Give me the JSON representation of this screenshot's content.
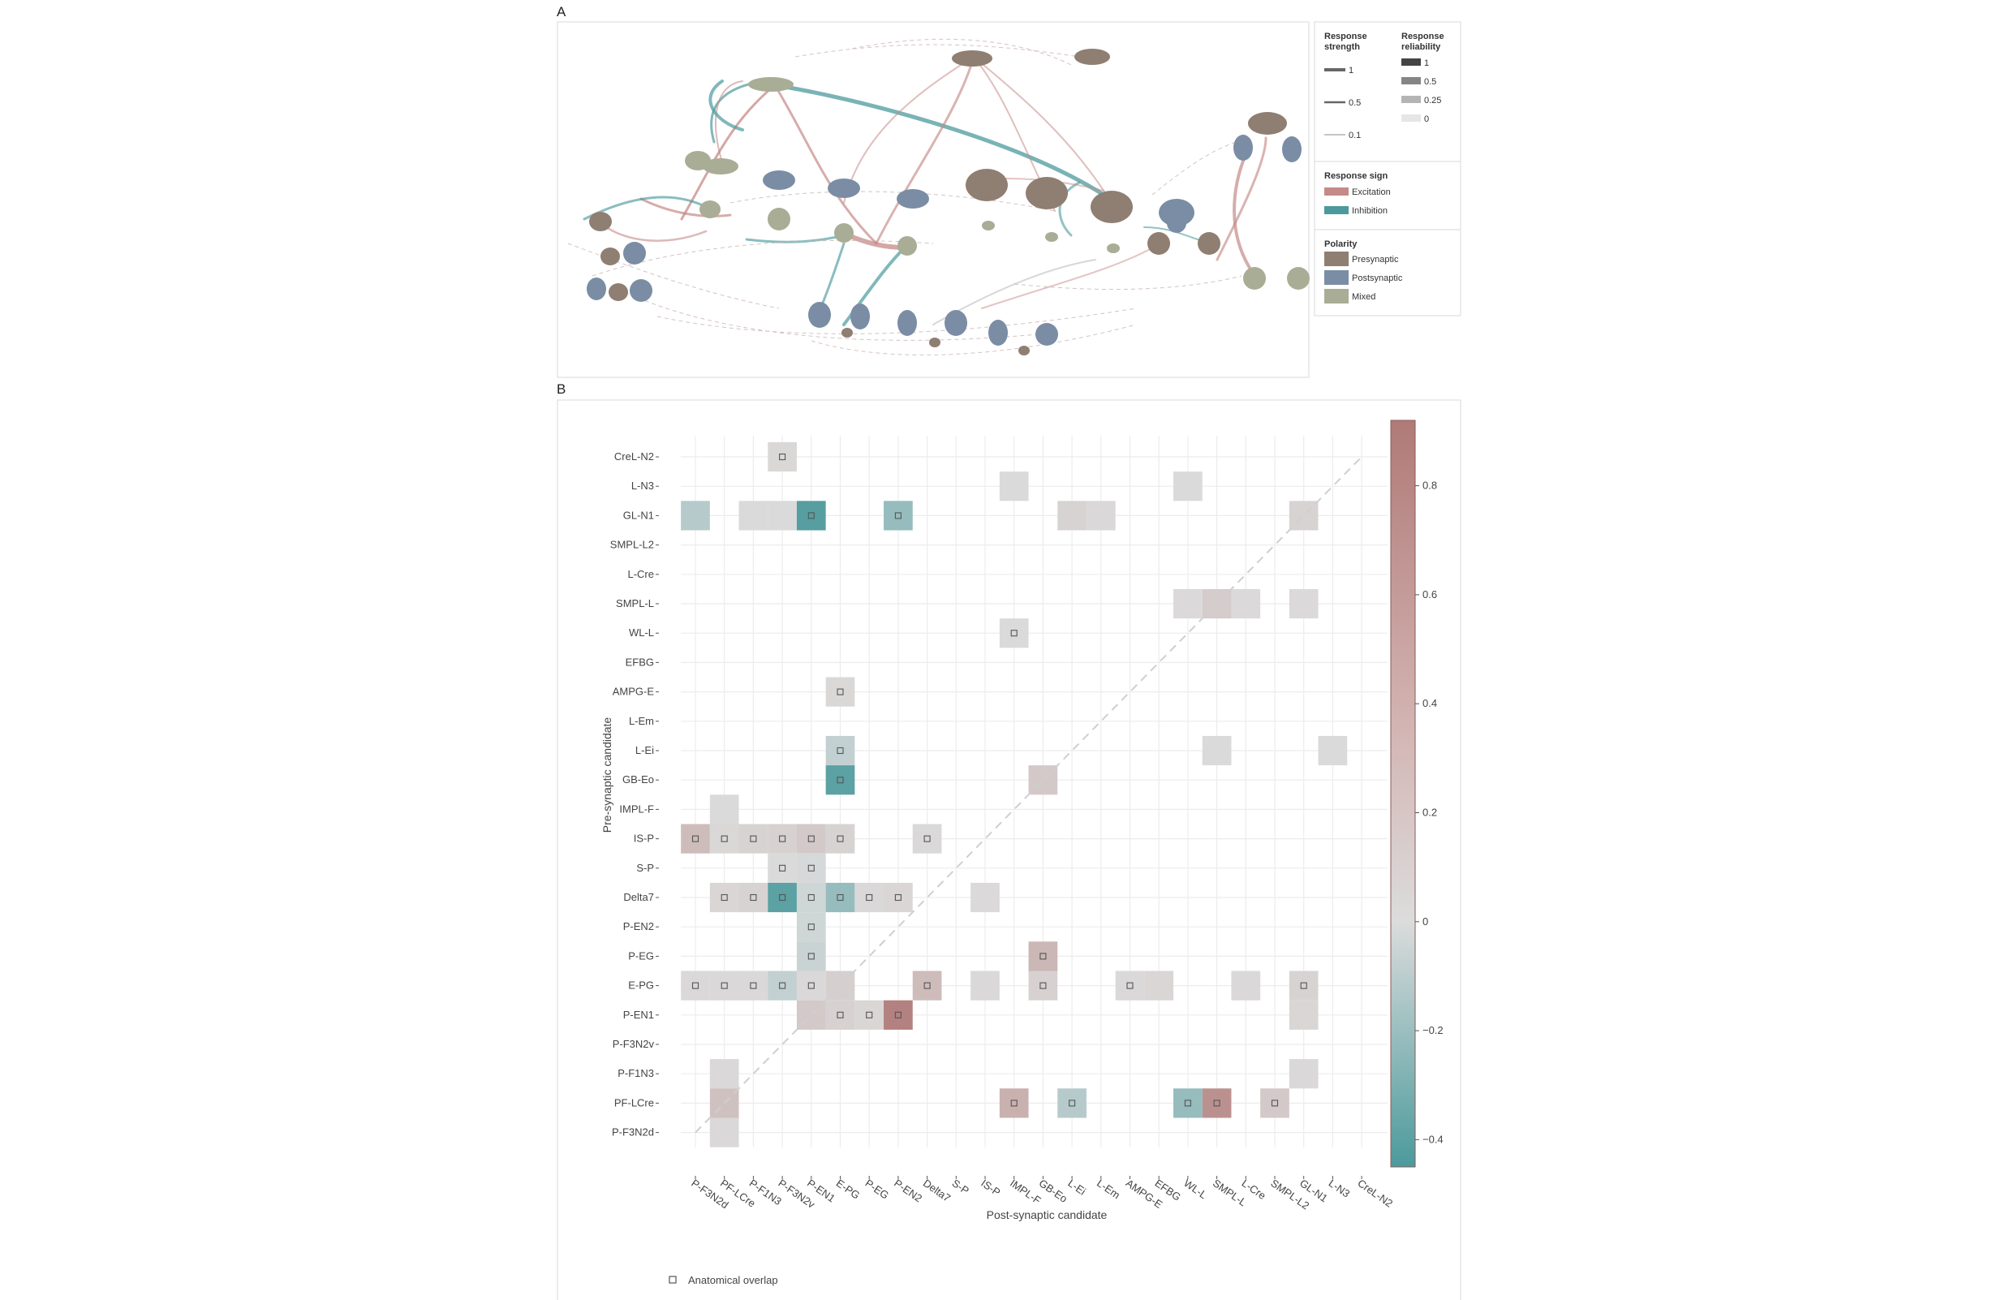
{
  "panels": {
    "a_label": "A",
    "b_label": "B"
  },
  "panel_a_legend": {
    "strength": {
      "title_1": "Response",
      "title_2": "strength",
      "levels": [
        "1",
        "0.5",
        "0.1"
      ]
    },
    "reliability": {
      "title_1": "Response",
      "title_2": "reliability",
      "levels": [
        "1",
        "0.5",
        "0.25",
        "0"
      ]
    },
    "sign": {
      "title": "Response sign",
      "items": [
        {
          "label": "Excitation",
          "color": "#c58a87"
        },
        {
          "label": "Inhibition",
          "color": "#4c9a9c"
        }
      ]
    },
    "polarity": {
      "title": "Polarity",
      "items": [
        {
          "label": "Presynaptic",
          "color": "#8f7e72"
        },
        {
          "label": "Postsynaptic",
          "color": "#7a8da5"
        },
        {
          "label": "Mixed",
          "color": "#a9ad96"
        }
      ]
    }
  },
  "chart_data": {
    "type": "heatmap",
    "xlabel": "Post-synaptic candidate",
    "ylabel": "Pre-synaptic candidate",
    "x_categories": [
      "P-F3N2d",
      "PF-LCre",
      "P-F1N3",
      "P-F3N2v",
      "P-EN1",
      "E-PG",
      "P-EG",
      "P-EN2",
      "Delta7",
      "S-P",
      "IS-P",
      "IMPL-F",
      "GB-Eo",
      "L-Ei",
      "L-Em",
      "AMPG-E",
      "EFBG",
      "WL-L",
      "SMPL-L",
      "L-Cre",
      "SMPL-L2",
      "GL-N1",
      "L-N3",
      "CreL-N2"
    ],
    "y_categories": [
      "CreL-N2",
      "L-N3",
      "GL-N1",
      "SMPL-L2",
      "L-Cre",
      "SMPL-L",
      "WL-L",
      "EFBG",
      "AMPG-E",
      "L-Em",
      "L-Ei",
      "GB-Eo",
      "IMPL-F",
      "IS-P",
      "S-P",
      "Delta7",
      "P-EN2",
      "P-EG",
      "E-PG",
      "P-EN1",
      "P-F3N2v",
      "P-F1N3",
      "PF-LCre",
      "P-F3N2d"
    ],
    "colorbar": {
      "min": -0.45,
      "max": 0.92,
      "ticks": [
        0.8,
        0.6,
        0.4,
        0.2,
        0,
        -0.2,
        -0.4
      ],
      "tick_labels": [
        "0.8",
        "0.6",
        "0.4",
        "0.2",
        "0",
        "−0.2",
        "−0.4"
      ],
      "low_color": "#4c9a9c",
      "mid_color": "#dcdcdc",
      "high_color": "#b07a77"
    },
    "diagonal": "dashed",
    "overlap_legend": "Anatomical overlap",
    "cells": [
      {
        "pre": "CreL-N2",
        "post": "P-F3N2v",
        "value": 0.05,
        "overlap": true
      },
      {
        "pre": "L-N3",
        "post": "IMPL-F",
        "value": 0.02,
        "overlap": false
      },
      {
        "pre": "L-N3",
        "post": "WL-L",
        "value": 0.02,
        "overlap": false
      },
      {
        "pre": "GL-N1",
        "post": "P-F3N2d",
        "value": -0.12,
        "overlap": false
      },
      {
        "pre": "GL-N1",
        "post": "P-F1N3",
        "value": 0.02,
        "overlap": false
      },
      {
        "pre": "GL-N1",
        "post": "P-F3N2v",
        "value": 0.02,
        "overlap": false
      },
      {
        "pre": "GL-N1",
        "post": "P-EN1",
        "value": -0.42,
        "overlap": true
      },
      {
        "pre": "GL-N1",
        "post": "P-EN2",
        "value": -0.22,
        "overlap": true
      },
      {
        "pre": "GL-N1",
        "post": "L-Ei",
        "value": 0.08,
        "overlap": false
      },
      {
        "pre": "GL-N1",
        "post": "L-Em",
        "value": 0.04,
        "overlap": false
      },
      {
        "pre": "GL-N1",
        "post": "GL-N1",
        "value": 0.08,
        "overlap": false
      },
      {
        "pre": "SMPL-L",
        "post": "WL-L",
        "value": 0.03,
        "overlap": false
      },
      {
        "pre": "SMPL-L",
        "post": "SMPL-L",
        "value": 0.15,
        "overlap": false
      },
      {
        "pre": "SMPL-L",
        "post": "L-Cre",
        "value": 0.03,
        "overlap": false
      },
      {
        "pre": "SMPL-L",
        "post": "GL-N1",
        "value": 0.03,
        "overlap": false
      },
      {
        "pre": "WL-L",
        "post": "IMPL-F",
        "value": 0.02,
        "overlap": true
      },
      {
        "pre": "AMPG-E",
        "post": "E-PG",
        "value": 0.05,
        "overlap": true
      },
      {
        "pre": "L-Ei",
        "post": "E-PG",
        "value": -0.08,
        "overlap": true
      },
      {
        "pre": "L-Ei",
        "post": "SMPL-L",
        "value": 0.02,
        "overlap": false
      },
      {
        "pre": "L-Ei",
        "post": "L-N3",
        "value": 0.02,
        "overlap": false
      },
      {
        "pre": "GB-Eo",
        "post": "E-PG",
        "value": -0.4,
        "overlap": true
      },
      {
        "pre": "GB-Eo",
        "post": "GB-Eo",
        "value": 0.18,
        "overlap": false
      },
      {
        "pre": "IMPL-F",
        "post": "PF-LCre",
        "value": 0.02,
        "overlap": false
      },
      {
        "pre": "IS-P",
        "post": "P-F3N2d",
        "value": 0.3,
        "overlap": true
      },
      {
        "pre": "IS-P",
        "post": "PF-LCre",
        "value": 0.05,
        "overlap": true
      },
      {
        "pre": "IS-P",
        "post": "P-F1N3",
        "value": 0.08,
        "overlap": true
      },
      {
        "pre": "IS-P",
        "post": "P-F3N2v",
        "value": 0.1,
        "overlap": true
      },
      {
        "pre": "IS-P",
        "post": "P-EN1",
        "value": 0.18,
        "overlap": true
      },
      {
        "pre": "IS-P",
        "post": "E-PG",
        "value": 0.08,
        "overlap": true
      },
      {
        "pre": "IS-P",
        "post": "Delta7",
        "value": 0.04,
        "overlap": true
      },
      {
        "pre": "S-P",
        "post": "P-F3N2v",
        "value": 0.02,
        "overlap": true
      },
      {
        "pre": "S-P",
        "post": "P-EN1",
        "value": -0.02,
        "overlap": true
      },
      {
        "pre": "Delta7",
        "post": "PF-LCre",
        "value": 0.06,
        "overlap": true
      },
      {
        "pre": "Delta7",
        "post": "P-F1N3",
        "value": 0.08,
        "overlap": true
      },
      {
        "pre": "Delta7",
        "post": "P-F3N2v",
        "value": -0.4,
        "overlap": true
      },
      {
        "pre": "Delta7",
        "post": "P-EN1",
        "value": -0.04,
        "overlap": true
      },
      {
        "pre": "Delta7",
        "post": "E-PG",
        "value": -0.22,
        "overlap": true
      },
      {
        "pre": "Delta7",
        "post": "P-EG",
        "value": 0.04,
        "overlap": true
      },
      {
        "pre": "Delta7",
        "post": "P-EN2",
        "value": 0.06,
        "overlap": true
      },
      {
        "pre": "Delta7",
        "post": "IS-P",
        "value": 0.03,
        "overlap": false
      },
      {
        "pre": "P-EN2",
        "post": "P-EN1",
        "value": -0.04,
        "overlap": true
      },
      {
        "pre": "P-EG",
        "post": "P-EN1",
        "value": -0.06,
        "overlap": true
      },
      {
        "pre": "P-EG",
        "post": "GB-Eo",
        "value": 0.35,
        "overlap": true
      },
      {
        "pre": "E-PG",
        "post": "P-F3N2d",
        "value": 0.04,
        "overlap": true
      },
      {
        "pre": "E-PG",
        "post": "PF-LCre",
        "value": 0.04,
        "overlap": true
      },
      {
        "pre": "E-PG",
        "post": "P-F1N3",
        "value": 0.04,
        "overlap": true
      },
      {
        "pre": "E-PG",
        "post": "P-F3N2v",
        "value": -0.08,
        "overlap": true
      },
      {
        "pre": "E-PG",
        "post": "P-EN1",
        "value": 0.04,
        "overlap": true
      },
      {
        "pre": "E-PG",
        "post": "E-PG",
        "value": 0.12,
        "overlap": false
      },
      {
        "pre": "E-PG",
        "post": "Delta7",
        "value": 0.3,
        "overlap": true
      },
      {
        "pre": "E-PG",
        "post": "IS-P",
        "value": 0.04,
        "overlap": false
      },
      {
        "pre": "E-PG",
        "post": "GB-Eo",
        "value": 0.1,
        "overlap": true
      },
      {
        "pre": "E-PG",
        "post": "AMPG-E",
        "value": 0.04,
        "overlap": true
      },
      {
        "pre": "E-PG",
        "post": "EFBG",
        "value": 0.06,
        "overlap": false
      },
      {
        "pre": "E-PG",
        "post": "L-Cre",
        "value": 0.04,
        "overlap": false
      },
      {
        "pre": "E-PG",
        "post": "GL-N1",
        "value": 0.08,
        "overlap": true
      },
      {
        "pre": "P-EN1",
        "post": "P-EN1",
        "value": 0.18,
        "overlap": false
      },
      {
        "pre": "P-EN1",
        "post": "E-PG",
        "value": 0.1,
        "overlap": true
      },
      {
        "pre": "P-EN1",
        "post": "P-EG",
        "value": 0.06,
        "overlap": true
      },
      {
        "pre": "P-EN1",
        "post": "P-EN2",
        "value": 0.85,
        "overlap": true
      },
      {
        "pre": "P-EN1",
        "post": "GL-N1",
        "value": 0.06,
        "overlap": false
      },
      {
        "pre": "P-F1N3",
        "post": "PF-LCre",
        "value": 0.04,
        "overlap": false
      },
      {
        "pre": "P-F1N3",
        "post": "GL-N1",
        "value": 0.04,
        "overlap": false
      },
      {
        "pre": "PF-LCre",
        "post": "PF-LCre",
        "value": 0.25,
        "overlap": false
      },
      {
        "pre": "PF-LCre",
        "post": "IMPL-F",
        "value": 0.4,
        "overlap": true
      },
      {
        "pre": "PF-LCre",
        "post": "L-Ei",
        "value": -0.12,
        "overlap": true
      },
      {
        "pre": "PF-LCre",
        "post": "WL-L",
        "value": -0.22,
        "overlap": true
      },
      {
        "pre": "PF-LCre",
        "post": "SMPL-L",
        "value": 0.7,
        "overlap": true
      },
      {
        "pre": "PF-LCre",
        "post": "SMPL-L2",
        "value": 0.18,
        "overlap": true
      },
      {
        "pre": "P-F3N2d",
        "post": "PF-LCre",
        "value": 0.04,
        "overlap": false
      }
    ]
  }
}
